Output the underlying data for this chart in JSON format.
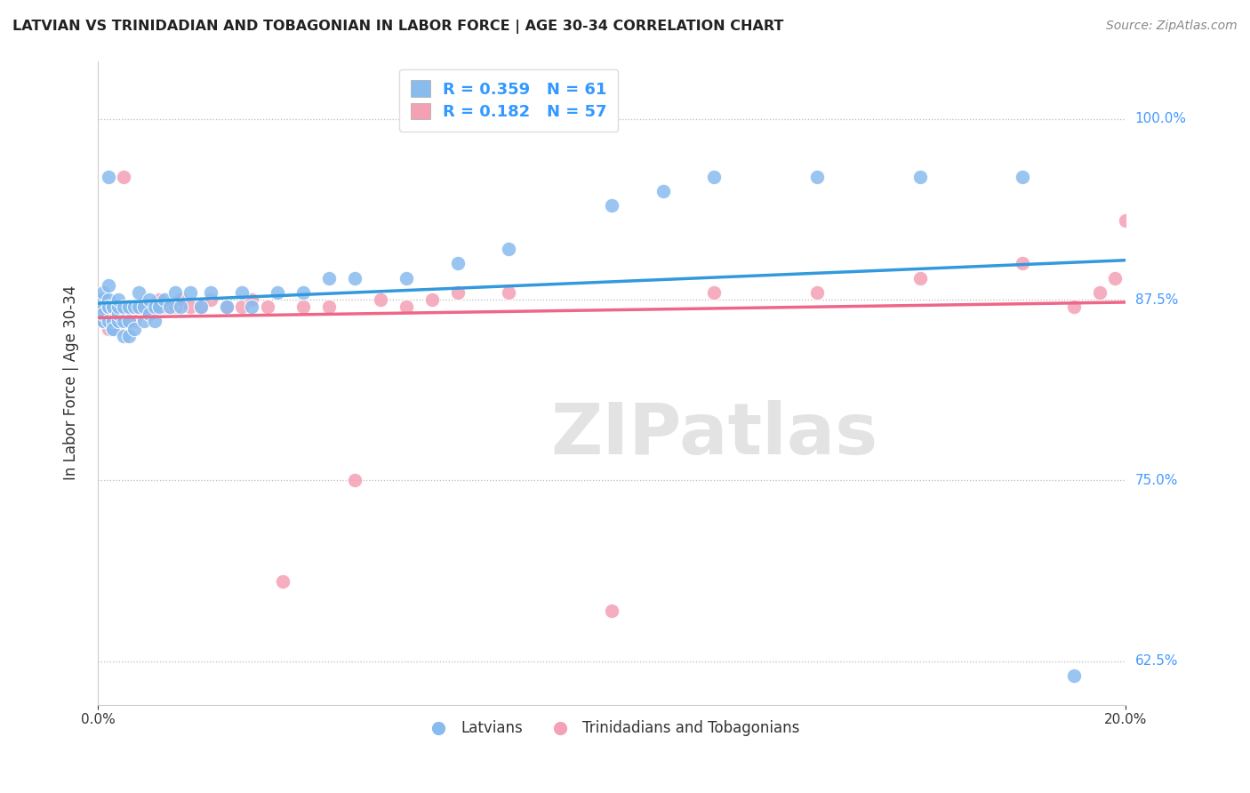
{
  "title": "LATVIAN VS TRINIDADIAN AND TOBAGONIAN IN LABOR FORCE | AGE 30-34 CORRELATION CHART",
  "source": "Source: ZipAtlas.com",
  "ylabel": "In Labor Force | Age 30-34",
  "xmin": 0.0,
  "xmax": 0.2,
  "ymin": 0.595,
  "ymax": 1.04,
  "blue_R": 0.359,
  "blue_N": 61,
  "pink_R": 0.182,
  "pink_N": 57,
  "blue_color": "#88bbee",
  "pink_color": "#f4a0b5",
  "blue_line_color": "#3399dd",
  "pink_line_color": "#ee6688",
  "legend_label_blue": "Latvians",
  "legend_label_pink": "Trinidadians and Tobagonians",
  "ytick_vals": [
    0.625,
    0.75,
    0.875,
    1.0
  ],
  "ytick_labels": [
    "62.5%",
    "75.0%",
    "87.5%",
    "100.0%"
  ],
  "blue_scatter_x": [
    0.001,
    0.001,
    0.001,
    0.001,
    0.001,
    0.002,
    0.002,
    0.002,
    0.002,
    0.002,
    0.002,
    0.003,
    0.003,
    0.003,
    0.003,
    0.003,
    0.004,
    0.004,
    0.004,
    0.004,
    0.005,
    0.005,
    0.005,
    0.006,
    0.006,
    0.006,
    0.007,
    0.007,
    0.008,
    0.008,
    0.009,
    0.009,
    0.01,
    0.01,
    0.011,
    0.011,
    0.012,
    0.013,
    0.014,
    0.015,
    0.016,
    0.018,
    0.02,
    0.022,
    0.025,
    0.028,
    0.03,
    0.035,
    0.04,
    0.045,
    0.05,
    0.06,
    0.07,
    0.08,
    0.1,
    0.11,
    0.12,
    0.14,
    0.16,
    0.18,
    0.19
  ],
  "blue_scatter_y": [
    0.875,
    0.88,
    0.87,
    0.86,
    0.865,
    0.87,
    0.86,
    0.875,
    0.885,
    0.87,
    0.96,
    0.855,
    0.86,
    0.87,
    0.855,
    0.87,
    0.86,
    0.865,
    0.87,
    0.875,
    0.85,
    0.86,
    0.87,
    0.85,
    0.86,
    0.87,
    0.855,
    0.87,
    0.87,
    0.88,
    0.86,
    0.87,
    0.865,
    0.875,
    0.86,
    0.87,
    0.87,
    0.875,
    0.87,
    0.88,
    0.87,
    0.88,
    0.87,
    0.88,
    0.87,
    0.88,
    0.87,
    0.88,
    0.88,
    0.89,
    0.89,
    0.89,
    0.9,
    0.91,
    0.94,
    0.95,
    0.96,
    0.96,
    0.96,
    0.96,
    0.615
  ],
  "pink_scatter_x": [
    0.001,
    0.001,
    0.001,
    0.001,
    0.002,
    0.002,
    0.002,
    0.002,
    0.003,
    0.003,
    0.003,
    0.004,
    0.004,
    0.004,
    0.005,
    0.005,
    0.005,
    0.006,
    0.006,
    0.007,
    0.007,
    0.008,
    0.008,
    0.009,
    0.01,
    0.01,
    0.011,
    0.012,
    0.013,
    0.014,
    0.015,
    0.016,
    0.018,
    0.02,
    0.022,
    0.025,
    0.028,
    0.03,
    0.033,
    0.036,
    0.04,
    0.045,
    0.05,
    0.055,
    0.06,
    0.065,
    0.07,
    0.08,
    0.1,
    0.12,
    0.14,
    0.16,
    0.18,
    0.19,
    0.195,
    0.198,
    0.2
  ],
  "pink_scatter_y": [
    0.87,
    0.86,
    0.875,
    0.87,
    0.855,
    0.865,
    0.87,
    0.87,
    0.87,
    0.86,
    0.87,
    0.855,
    0.87,
    0.87,
    0.86,
    0.87,
    0.96,
    0.865,
    0.87,
    0.86,
    0.87,
    0.87,
    0.87,
    0.87,
    0.865,
    0.87,
    0.87,
    0.875,
    0.87,
    0.87,
    0.87,
    0.875,
    0.87,
    0.87,
    0.875,
    0.87,
    0.87,
    0.875,
    0.87,
    0.68,
    0.87,
    0.87,
    0.75,
    0.875,
    0.87,
    0.875,
    0.88,
    0.88,
    0.66,
    0.88,
    0.88,
    0.89,
    0.9,
    0.87,
    0.88,
    0.89,
    0.93
  ]
}
